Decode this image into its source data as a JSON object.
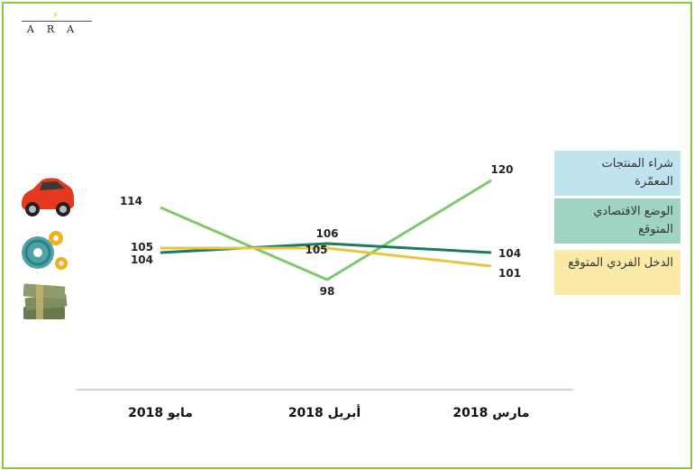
{
  "logo": {
    "text": "ARA",
    "icon": "lightning-bolt-icon",
    "accent": "#f7b500"
  },
  "icons": [
    "car-icon",
    "gears-icon",
    "money-stack-icon"
  ],
  "chart_data": {
    "type": "line",
    "categories": [
      "مايو 2018",
      "أبريل 2018",
      "مارس 2018"
    ],
    "ylim": [
      80,
      140
    ],
    "grid": false,
    "legend_position": "right",
    "series": [
      {
        "name": "شراء المنتجات المعمّرة",
        "values": [
          114,
          98,
          120
        ],
        "labels": [
          "114",
          "98",
          "120"
        ],
        "color": "#7dc96a",
        "legend_bg": "#bfe3ef"
      },
      {
        "name": "الوضع الاقتصادي المتوقع",
        "values": [
          104,
          106,
          104
        ],
        "labels": [
          "104",
          "106",
          "104"
        ],
        "color": "#1c7a63",
        "legend_bg": "#9fd4c3"
      },
      {
        "name": "الدخل الفردي المتوقع",
        "values": [
          105,
          105,
          101
        ],
        "labels": [
          "105",
          "105",
          "101"
        ],
        "color": "#e8c440",
        "legend_bg": "#fbe9a6"
      }
    ]
  },
  "colors": {
    "frame": "#8cc63f",
    "axis": "#aaaaaa"
  }
}
